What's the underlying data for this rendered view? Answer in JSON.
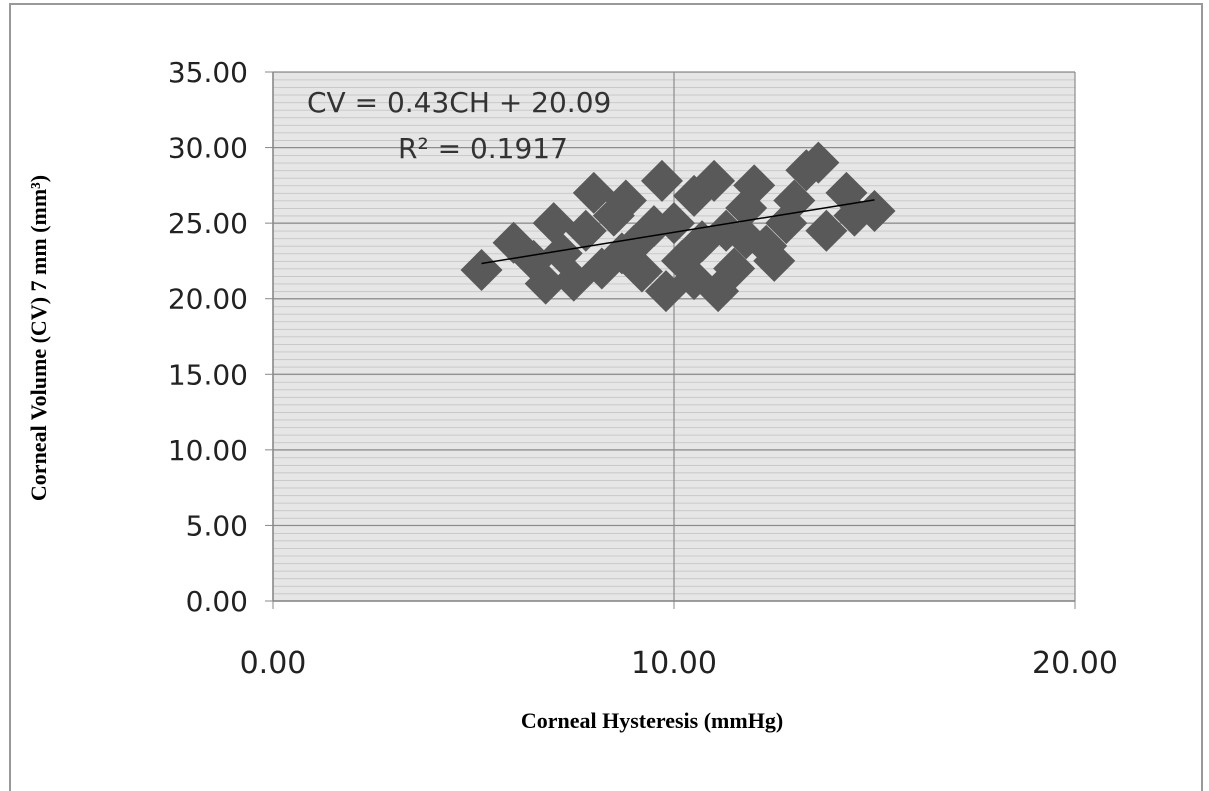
{
  "chart_data": {
    "type": "scatter",
    "x_label": "Corneal Hysteresis (mmHg)",
    "y_label": "Corneal Volume  (CV) 7 mm (mm³)",
    "annotations": [
      "CV = 0.43CH + 20.09",
      "R² = 0.1917"
    ],
    "xlim": [
      0,
      20
    ],
    "ylim": [
      0,
      35
    ],
    "xticks": [
      {
        "value": 0,
        "label": "0.00"
      },
      {
        "value": 10,
        "label": "10.00"
      },
      {
        "value": 20,
        "label": "20.00"
      }
    ],
    "yticks": [
      {
        "value": 0,
        "label": "0.00"
      },
      {
        "value": 5,
        "label": "5.00"
      },
      {
        "value": 10,
        "label": "10.00"
      },
      {
        "value": 15,
        "label": "15.00"
      },
      {
        "value": 20,
        "label": "20.00"
      },
      {
        "value": 25,
        "label": "25.00"
      },
      {
        "value": 30,
        "label": "30.00"
      },
      {
        "value": 35,
        "label": "35.00"
      }
    ],
    "grid": true,
    "series": [
      {
        "color": "#595959",
        "x": [
          5.2,
          6.0,
          6.5,
          6.8,
          7.2,
          7.5,
          7.8,
          8.0,
          8.2,
          8.5,
          8.8,
          9.0,
          9.2,
          9.5,
          9.7,
          9.8,
          10.0,
          10.2,
          10.5,
          10.7,
          11.0,
          11.1,
          11.3,
          11.5,
          11.8,
          12.0,
          12.3,
          12.5,
          12.8,
          13.0,
          13.3,
          13.6,
          13.8,
          14.3,
          14.5,
          15.0,
          7.0,
          10.5,
          8.7,
          11.8
        ],
        "values": [
          21.9,
          23.7,
          22.5,
          21.0,
          23.0,
          21.2,
          24.5,
          27.0,
          22.0,
          25.5,
          26.5,
          23.5,
          21.8,
          24.8,
          27.8,
          20.5,
          25.0,
          22.5,
          26.8,
          23.8,
          27.8,
          20.5,
          24.5,
          22.0,
          26.0,
          27.5,
          23.5,
          22.5,
          25.0,
          26.5,
          28.5,
          29.0,
          24.5,
          27.0,
          25.5,
          25.8,
          25.0,
          21.3,
          23.0,
          24.0
        ]
      },
      {
        "type": "line",
        "color": "#000000",
        "x": [
          5.2,
          15.0
        ],
        "values": [
          22.33,
          26.54
        ]
      }
    ]
  }
}
